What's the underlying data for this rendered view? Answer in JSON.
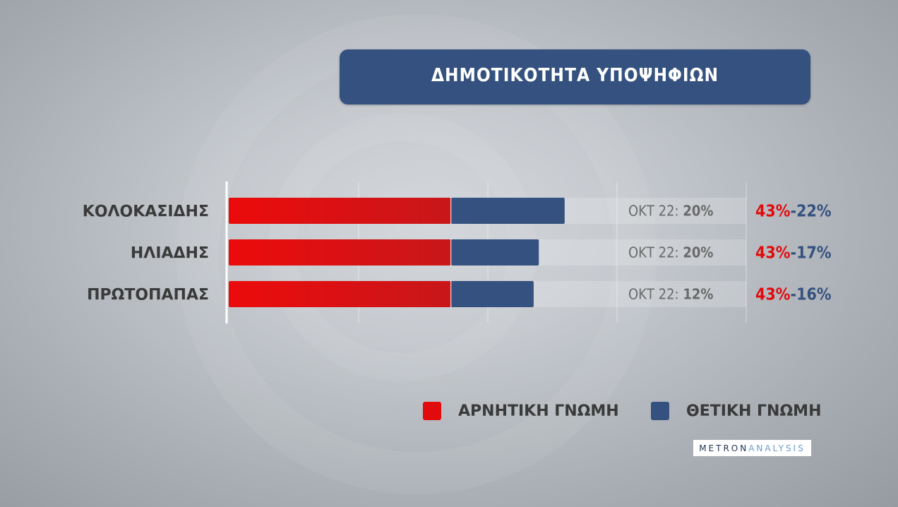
{
  "title": "ΔΗΜΟΤΙΚΟΤΗΤΑ ΥΠΟΨΗΦΙΩΝ",
  "colors": {
    "negative": "#e10a0c",
    "positive": "#34517f",
    "text": "#3a3a3a",
    "muted": "#6a6a6a"
  },
  "chart_data": {
    "type": "bar",
    "orientation": "horizontal",
    "stacked": true,
    "categories": [
      "ΚΟΛΟΚΑΣΙΔΗΣ",
      "ΗΛΙΑΔΗΣ",
      "ΠΡΩΤΟΠΑΠΑΣ"
    ],
    "series": [
      {
        "name": "ΑΡΝΗΤΙΚΗ ΓΝΩΜΗ",
        "values": [
          43,
          43,
          43
        ]
      },
      {
        "name": "ΘΕΤΙΚΗ ΓΝΩΜΗ",
        "values": [
          22,
          17,
          16
        ]
      }
    ],
    "value_labels": {
      "negative": [
        "43%",
        "43%",
        "43%"
      ],
      "separator": "-",
      "positive": [
        "22%",
        "17%",
        "16%"
      ]
    },
    "previous": {
      "label": "ΟΚΤ 22:",
      "values": [
        "20%",
        "20%",
        "12%"
      ]
    },
    "xlim": [
      0,
      100
    ],
    "grid": true,
    "legend_position": "bottom-right"
  },
  "legend": [
    {
      "label": "ΑΡΝΗΤΙΚΗ ΓΝΩΜΗ",
      "color": "#e10a0c"
    },
    {
      "label": "ΘΕΤΙΚΗ ΓΝΩΜΗ",
      "color": "#34517f"
    }
  ],
  "logo": {
    "part1": "METRON",
    "part2": "ANALYSIS"
  }
}
